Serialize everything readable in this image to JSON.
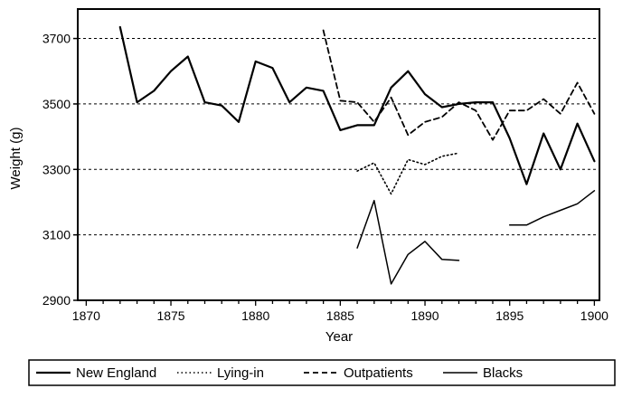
{
  "chart_data": {
    "type": "line",
    "title": "",
    "xlabel": "Year",
    "ylabel": "Weight (g)",
    "xlim": [
      1869.5,
      1900.3
    ],
    "ylim": [
      2900,
      3790
    ],
    "x_ticks": [
      1870,
      1875,
      1880,
      1885,
      1890,
      1895,
      1900
    ],
    "x_tick_labels": [
      "1870",
      "1875",
      "1880",
      "1885",
      "1890",
      "1895",
      "1900"
    ],
    "y_ticks": [
      2900,
      3100,
      3300,
      3500,
      3700
    ],
    "y_tick_labels": [
      "2900",
      "3100",
      "3300",
      "3500",
      "3700"
    ],
    "grid": "horizontal-dashed",
    "legend_position": "bottom",
    "series": [
      {
        "name": "New England",
        "style": "solid-thick",
        "color": "#000000",
        "points": [
          [
            1872,
            3735
          ],
          [
            1873,
            3505
          ],
          [
            1874,
            3540
          ],
          [
            1875,
            3600
          ],
          [
            1876,
            3645
          ],
          [
            1877,
            3505
          ],
          [
            1878,
            3495
          ],
          [
            1879,
            3445
          ],
          [
            1880,
            3630
          ],
          [
            1881,
            3610
          ],
          [
            1882,
            3505
          ],
          [
            1883,
            3550
          ],
          [
            1884,
            3540
          ],
          [
            1885,
            3420
          ],
          [
            1886,
            3435
          ],
          [
            1887,
            3435
          ],
          [
            1888,
            3550
          ],
          [
            1889,
            3600
          ],
          [
            1890,
            3530
          ],
          [
            1891,
            3490
          ],
          [
            1892,
            3500
          ],
          [
            1893,
            3505
          ],
          [
            1894,
            3505
          ],
          [
            1895,
            3395
          ],
          [
            1896,
            3255
          ],
          [
            1897,
            3410
          ],
          [
            1898,
            3300
          ],
          [
            1899,
            3440
          ],
          [
            1900,
            3325
          ]
        ]
      },
      {
        "name": "Lying-in",
        "style": "dotted",
        "color": "#000000",
        "points": [
          [
            1886,
            3295
          ],
          [
            1887,
            3320
          ],
          [
            1888,
            3225
          ],
          [
            1889,
            3330
          ],
          [
            1890,
            3315
          ],
          [
            1891,
            3340
          ],
          [
            1892,
            3350
          ]
        ]
      },
      {
        "name": "Outpatients",
        "style": "dashed",
        "color": "#000000",
        "points": [
          [
            1884,
            3725
          ],
          [
            1885,
            3510
          ],
          [
            1886,
            3505
          ],
          [
            1887,
            3445
          ],
          [
            1888,
            3520
          ],
          [
            1889,
            3405
          ],
          [
            1890,
            3445
          ],
          [
            1891,
            3460
          ],
          [
            1892,
            3505
          ],
          [
            1893,
            3480
          ],
          [
            1894,
            3390
          ],
          [
            1895,
            3480
          ],
          [
            1896,
            3480
          ],
          [
            1897,
            3515
          ],
          [
            1898,
            3470
          ],
          [
            1899,
            3565
          ],
          [
            1900,
            3470
          ]
        ]
      },
      {
        "name": "Blacks",
        "style": "solid-thin",
        "color": "#000000",
        "segments": [
          [
            [
              1886,
              3060
            ],
            [
              1887,
              3205
            ],
            [
              1888,
              2950
            ],
            [
              1889,
              3040
            ],
            [
              1890,
              3080
            ],
            [
              1891,
              3025
            ],
            [
              1892,
              3022
            ]
          ],
          [
            [
              1895,
              3130
            ],
            [
              1896,
              3130
            ],
            [
              1897,
              3155
            ],
            [
              1898,
              3175
            ],
            [
              1899,
              3195
            ],
            [
              1900,
              3235
            ]
          ]
        ]
      }
    ]
  }
}
